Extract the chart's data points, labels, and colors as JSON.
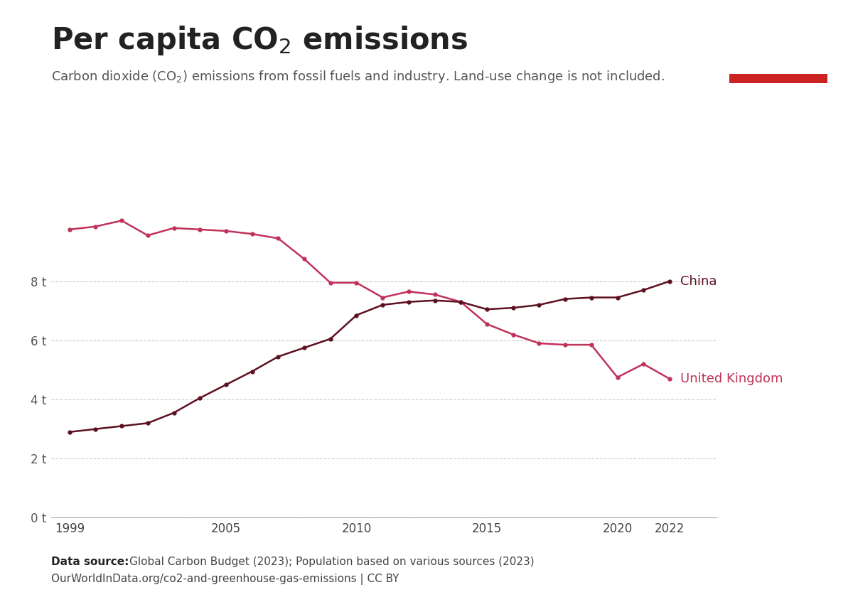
{
  "title": "Per capita CO₂ emissions",
  "subtitle": "Carbon dioxide (CO₂) emissions from fossil fuels and industry. Land-use change is not included.",
  "datasource_bold": "Data source:",
  "datasource_text": " Global Carbon Budget (2023); Population based on various sources (2023)",
  "datasource_line2": "OurWorldInData.org/co2-and-greenhouse-gas-emissions | CC BY",
  "uk_color": "#c0325a",
  "china_color": "#5c1020",
  "background_color": "#ffffff",
  "years": [
    1999,
    2000,
    2001,
    2002,
    2003,
    2004,
    2005,
    2006,
    2007,
    2008,
    2009,
    2010,
    2011,
    2012,
    2013,
    2014,
    2015,
    2016,
    2017,
    2018,
    2019,
    2020,
    2021,
    2022
  ],
  "uk_values": [
    9.75,
    9.85,
    10.05,
    9.55,
    9.8,
    9.75,
    9.7,
    9.6,
    9.45,
    8.75,
    7.95,
    7.95,
    7.45,
    7.65,
    7.55,
    7.3,
    6.55,
    6.2,
    5.9,
    5.85,
    5.85,
    4.75,
    5.2,
    4.7
  ],
  "china_values": [
    2.9,
    3.0,
    3.1,
    3.2,
    3.55,
    4.05,
    4.5,
    4.95,
    5.45,
    5.75,
    6.05,
    6.85,
    7.2,
    7.3,
    7.35,
    7.3,
    7.05,
    7.1,
    7.2,
    7.4,
    7.45,
    7.45,
    7.7,
    8.0
  ],
  "yticks": [
    0,
    2,
    4,
    6,
    8
  ],
  "ytick_labels": [
    "0 t",
    "2 t",
    "4 t",
    "6 t",
    "8 t"
  ],
  "xticks": [
    1999,
    2005,
    2010,
    2015,
    2020,
    2022
  ],
  "ylim": [
    0,
    11.2
  ],
  "xlim": [
    1998.3,
    2023.8
  ],
  "owid_logo_bg": "#1a3a5c",
  "owid_logo_red": "#cc2222",
  "title_fontsize": 30,
  "subtitle_fontsize": 13,
  "axis_fontsize": 12,
  "label_fontsize": 13
}
